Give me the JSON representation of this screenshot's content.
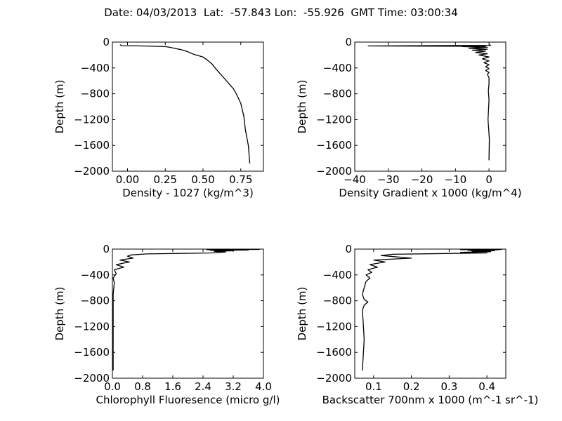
{
  "title": "Date: 04/03/2013  Lat:  -57.843 Lon:  -55.926  GMT Time: 03:00:34",
  "chart_data": [
    {
      "type": "line",
      "xlabel": "Density - 1027 (kg/m^3)",
      "ylabel": "Depth (m)",
      "xlim": [
        -0.1,
        0.9
      ],
      "ylim": [
        -2000,
        0
      ],
      "xticks": [
        0.0,
        0.25,
        0.5,
        0.75
      ],
      "xticklabels": [
        "0.00",
        "0.25",
        "0.50",
        "0.75"
      ],
      "yticks": [
        0,
        -400,
        -800,
        -1200,
        -1600,
        -2000
      ],
      "yticklabels": [
        "0",
        "−400",
        "−800",
        "−1200",
        "−1600",
        "−2000"
      ],
      "series": [
        {
          "x": [
            -0.05,
            -0.04,
            0.1,
            0.25,
            0.28,
            0.32,
            0.36,
            0.4,
            0.44,
            0.5,
            0.53,
            0.56,
            0.58,
            0.61,
            0.64,
            0.67,
            0.7,
            0.72,
            0.75,
            0.77,
            0.78,
            0.8,
            0.81
          ],
          "y": [
            -40,
            -55,
            -60,
            -70,
            -80,
            -100,
            -120,
            -150,
            -190,
            -230,
            -280,
            -340,
            -400,
            -480,
            -560,
            -640,
            -720,
            -800,
            -950,
            -1150,
            -1350,
            -1600,
            -1880
          ]
        }
      ]
    },
    {
      "type": "line",
      "xlabel": "Density Gradient x 1000 (kg/m^4)",
      "ylabel": "Depth (m)",
      "xlim": [
        -40,
        5
      ],
      "ylim": [
        -2000,
        0
      ],
      "xticks": [
        -40,
        -30,
        -20,
        -10,
        0
      ],
      "xticklabels": [
        "−40",
        "−30",
        "−20",
        "−10",
        "0"
      ],
      "yticks": [
        0,
        -400,
        -800,
        -1200,
        -1600,
        -2000
      ],
      "yticklabels": [
        "0",
        "−400",
        "−800",
        "−1200",
        "−1600",
        "−2000"
      ],
      "series": [
        {
          "x": [
            0,
            0.5,
            -36,
            -1,
            -8,
            -0.5,
            -6,
            -0.5,
            -5,
            -1,
            -4,
            -0.5,
            -3,
            0,
            -2,
            0,
            -1.5,
            0,
            -1,
            0,
            -1,
            0,
            -0.5,
            0,
            0,
            -0.2,
            0,
            -0.3,
            0.1,
            0
          ],
          "y": [
            -40,
            -50,
            -60,
            -65,
            -70,
            -80,
            -95,
            -110,
            -125,
            -140,
            -160,
            -180,
            -200,
            -230,
            -260,
            -290,
            -320,
            -350,
            -380,
            -410,
            -440,
            -470,
            -500,
            -550,
            -650,
            -750,
            -900,
            -1200,
            -1500,
            -1830
          ]
        }
      ]
    },
    {
      "type": "line",
      "xlabel": "Chlorophyll Fluoresence (micro g/l)",
      "ylabel": "Depth (m)",
      "xlim": [
        0,
        4
      ],
      "ylim": [
        -2000,
        0
      ],
      "xticks": [
        0.0,
        0.8,
        1.6,
        2.4,
        3.2,
        4.0
      ],
      "xticklabels": [
        "0.0",
        "0.8",
        "1.6",
        "2.4",
        "3.2",
        "4.0"
      ],
      "yticks": [
        0,
        -400,
        -800,
        -1200,
        -1600,
        -2000
      ],
      "yticklabels": [
        "0",
        "−400",
        "−800",
        "−1200",
        "−1600",
        "−2000"
      ],
      "series": [
        {
          "x": [
            3.9,
            2.5,
            3.6,
            2.6,
            3.2,
            2.7,
            3.0,
            2.6,
            0.9,
            0.5,
            0.4,
            0.55,
            0.2,
            0.45,
            0.1,
            0.3,
            0.05,
            0.1,
            0.02,
            0.05,
            0.02,
            0.02,
            0.02,
            0.02,
            0.02
          ],
          "y": [
            -5,
            -10,
            -15,
            -20,
            -25,
            -35,
            -45,
            -60,
            -75,
            -90,
            -110,
            -140,
            -170,
            -200,
            -240,
            -280,
            -320,
            -380,
            -450,
            -520,
            -700,
            -1000,
            -1300,
            -1600,
            -1880
          ]
        }
      ]
    },
    {
      "type": "line",
      "xlabel": "Backscatter 700nm x 1000 (m^-1 sr^-1)",
      "ylabel": "Depth (m)",
      "xlim": [
        0.05,
        0.45
      ],
      "ylim": [
        -2000,
        0
      ],
      "xticks": [
        0.1,
        0.2,
        0.3,
        0.4
      ],
      "xticklabels": [
        "0.1",
        "0.2",
        "0.3",
        "0.4"
      ],
      "yticks": [
        0,
        -400,
        -800,
        -1200,
        -1600,
        -2000
      ],
      "yticklabels": [
        "0",
        "−400",
        "−800",
        "−1200",
        "−1600",
        "−2000"
      ],
      "series": [
        {
          "x": [
            0.44,
            0.33,
            0.43,
            0.35,
            0.42,
            0.36,
            0.41,
            0.33,
            0.4,
            0.15,
            0.12,
            0.2,
            0.1,
            0.13,
            0.09,
            0.11,
            0.085,
            0.095,
            0.08,
            0.09,
            0.08,
            0.075,
            0.07,
            0.075,
            0.085,
            0.075,
            0.07,
            0.072,
            0.075,
            0.072,
            0.07
          ],
          "y": [
            -5,
            -8,
            -12,
            -18,
            -25,
            -32,
            -40,
            -50,
            -60,
            -80,
            -100,
            -140,
            -170,
            -200,
            -240,
            -280,
            -320,
            -360,
            -400,
            -450,
            -500,
            -600,
            -700,
            -780,
            -820,
            -870,
            -950,
            -1100,
            -1400,
            -1700,
            -1880
          ]
        }
      ]
    }
  ]
}
